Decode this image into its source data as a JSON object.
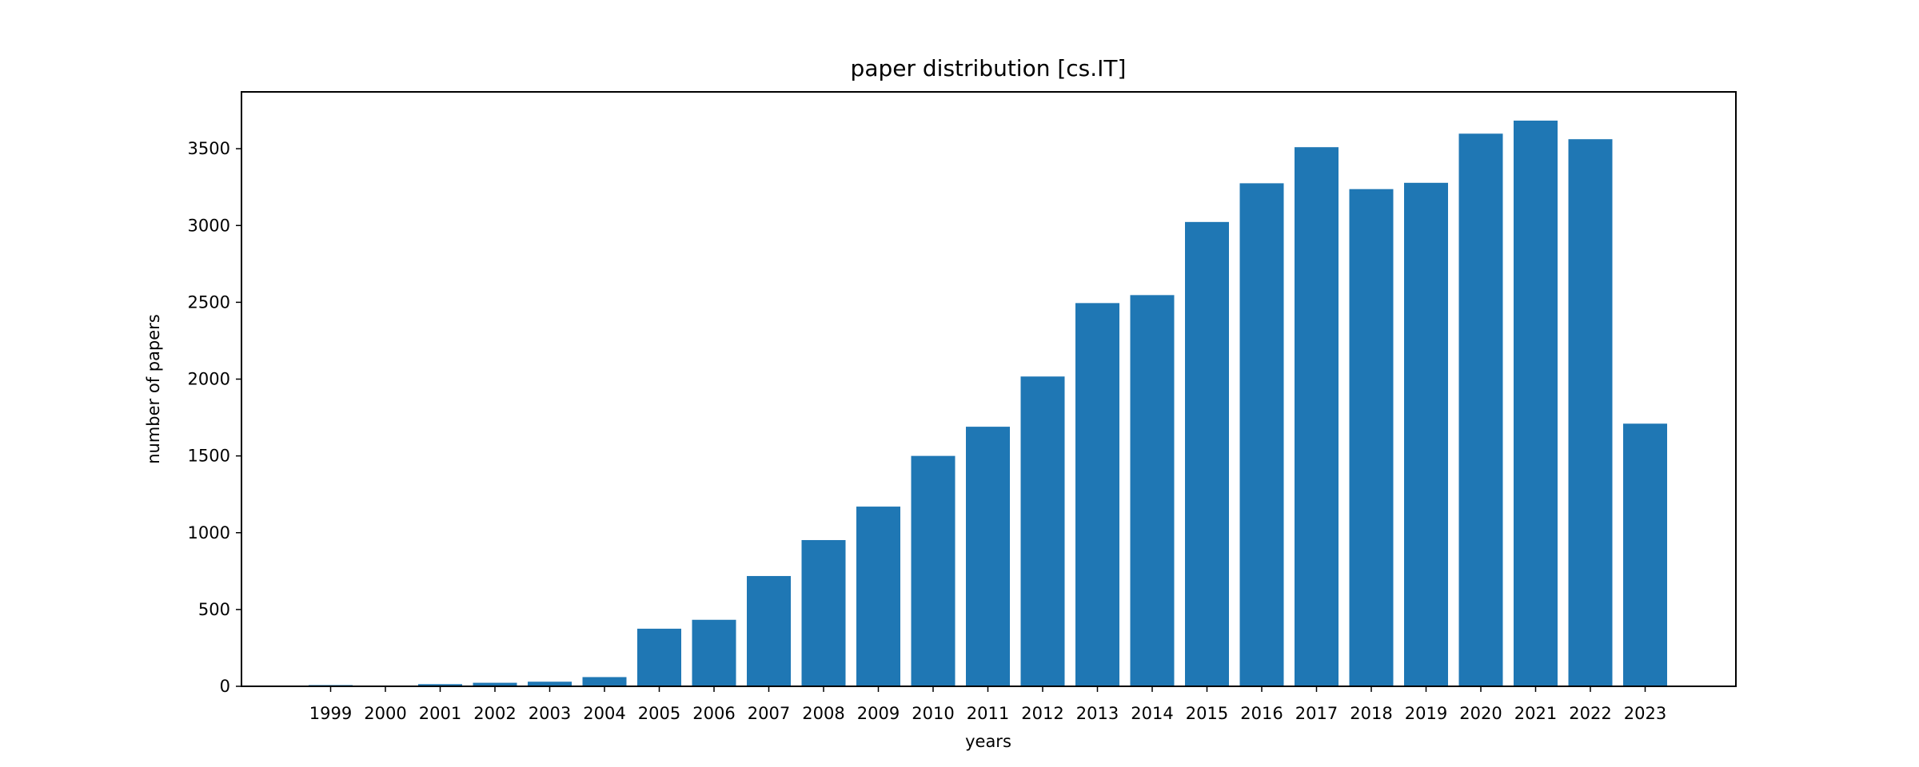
{
  "chart_data": {
    "type": "bar",
    "title": "paper distribution [cs.IT]",
    "xlabel": "years",
    "ylabel": "number of papers",
    "categories": [
      "1999",
      "2000",
      "2001",
      "2002",
      "2003",
      "2004",
      "2005",
      "2006",
      "2007",
      "2008",
      "2009",
      "2010",
      "2011",
      "2012",
      "2013",
      "2014",
      "2015",
      "2016",
      "2017",
      "2018",
      "2019",
      "2020",
      "2021",
      "2022",
      "2023"
    ],
    "values": [
      8,
      4,
      14,
      23,
      30,
      60,
      375,
      433,
      718,
      952,
      1170,
      1500,
      1690,
      2017,
      2495,
      2547,
      3023,
      3275,
      3510,
      3237,
      3278,
      3598,
      3683,
      3562,
      1710
    ],
    "ylim": [
      0,
      3870
    ],
    "yticks": [
      0,
      500,
      1000,
      1500,
      2000,
      2500,
      3000,
      3500
    ],
    "bar_color": "#1f77b4",
    "grid": false,
    "legend": "none"
  }
}
